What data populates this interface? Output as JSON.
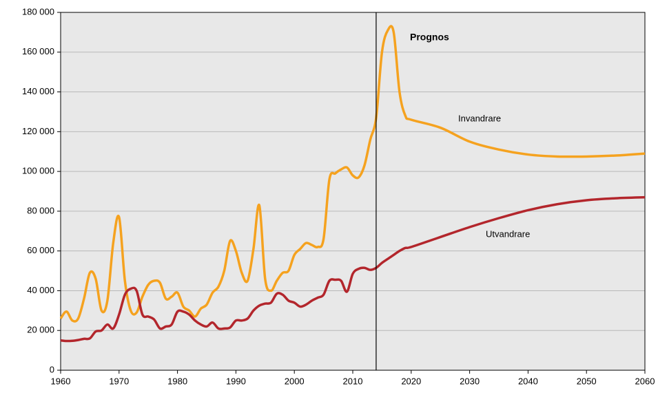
{
  "chart_data": {
    "type": "line",
    "x": [
      1960,
      1961,
      1962,
      1963,
      1964,
      1965,
      1966,
      1967,
      1968,
      1969,
      1970,
      1971,
      1972,
      1973,
      1974,
      1975,
      1976,
      1977,
      1978,
      1979,
      1980,
      1981,
      1982,
      1983,
      1984,
      1985,
      1986,
      1987,
      1988,
      1989,
      1990,
      1991,
      1992,
      1993,
      1994,
      1995,
      1996,
      1997,
      1998,
      1999,
      2000,
      2001,
      2002,
      2003,
      2004,
      2005,
      2006,
      2007,
      2008,
      2009,
      2010,
      2011,
      2012,
      2013,
      2014,
      2015,
      2016,
      2017,
      2018,
      2019,
      2020,
      2025,
      2030,
      2035,
      2040,
      2045,
      2050,
      2055,
      2060
    ],
    "series": [
      {
        "name": "Invandrare",
        "color": "#f5a21f",
        "values": [
          26000,
          29500,
          25000,
          26000,
          36000,
          49000,
          46000,
          30000,
          35000,
          64000,
          77000,
          45000,
          30000,
          29000,
          37000,
          43000,
          45000,
          44000,
          36000,
          37000,
          39000,
          32000,
          30000,
          27000,
          31000,
          33000,
          39000,
          42000,
          50000,
          65000,
          60000,
          49000,
          45000,
          61000,
          83000,
          46000,
          40000,
          45000,
          49000,
          50000,
          58000,
          61000,
          64000,
          63000,
          62000,
          66000,
          96000,
          99000,
          101000,
          102000,
          98000,
          97000,
          103000,
          116000,
          127000,
          160000,
          171000,
          170000,
          140000,
          128000,
          126000,
          122000,
          115000,
          111000,
          108500,
          107500,
          107500,
          108000,
          109000
        ]
      },
      {
        "name": "Utvandrare",
        "color": "#b3262c",
        "values": [
          15000,
          14700,
          14800,
          15200,
          15800,
          16000,
          19500,
          20000,
          23000,
          21000,
          28000,
          38000,
          41000,
          40000,
          28000,
          27000,
          25500,
          21000,
          22000,
          23000,
          29500,
          29500,
          28000,
          25000,
          23000,
          22000,
          24000,
          21000,
          21000,
          21500,
          25000,
          25000,
          26000,
          30000,
          32500,
          33500,
          34000,
          38500,
          38000,
          35000,
          34000,
          32000,
          33000,
          35000,
          36500,
          38000,
          45000,
          45500,
          45000,
          39500,
          48500,
          51000,
          51500,
          50500,
          51500,
          54000,
          56000,
          58000,
          60000,
          61500,
          62000,
          67000,
          72000,
          76500,
          80500,
          83500,
          85500,
          86500,
          87000
        ]
      }
    ],
    "annotations": [
      "Prognos",
      "Invandrare",
      "Utvandrare"
    ],
    "vline": 2014,
    "xlim": [
      1960,
      2060
    ],
    "xticks": [
      1960,
      1970,
      1980,
      1990,
      2000,
      2010,
      2020,
      2030,
      2040,
      2050,
      2060
    ],
    "ylim": [
      0,
      180000
    ],
    "yticks": [
      0,
      {
        "value": 20000,
        "label": "20 000"
      },
      {
        "value": 40000,
        "label": "40 000"
      },
      {
        "value": 60000,
        "label": "60 000"
      },
      {
        "value": 80000,
        "label": "80 000"
      },
      {
        "value": 100000,
        "label": "100 000"
      },
      {
        "value": 120000,
        "label": "120 000"
      },
      {
        "value": 140000,
        "label": "140 000"
      },
      {
        "value": 160000,
        "label": "160 000"
      },
      {
        "value": 180000,
        "label": "180 000"
      }
    ],
    "grid": true,
    "background": "#e8e8e8"
  }
}
